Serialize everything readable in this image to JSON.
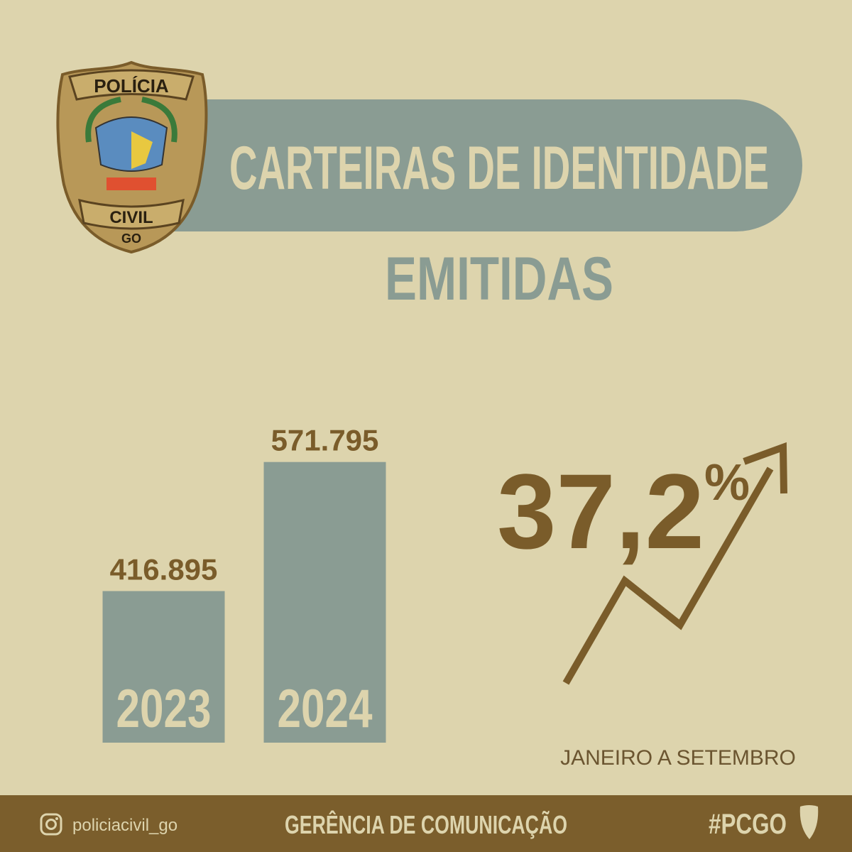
{
  "badge": {
    "top": "POLÍCIA",
    "middle": "CIVIL",
    "bottom": "GO"
  },
  "chart_data": {
    "type": "bar",
    "title": "CARTEIRAS DE IDENTIDADE",
    "subtitle": "EMITIDAS",
    "categories": [
      "2023",
      "2024"
    ],
    "values": [
      416895,
      571795
    ],
    "value_labels": [
      "416.895",
      "571.795"
    ],
    "color": "#8a9c93",
    "ylim": [
      235000,
      615000
    ],
    "annotation": {
      "number": "37,2",
      "unit": "%"
    },
    "period": "JANEIRO A SETEMBRO"
  },
  "footer": {
    "instagram": "policiacivil_go",
    "department": "GERÊNCIA DE COMUNICAÇÃO",
    "hashtag": "#PCGO"
  }
}
